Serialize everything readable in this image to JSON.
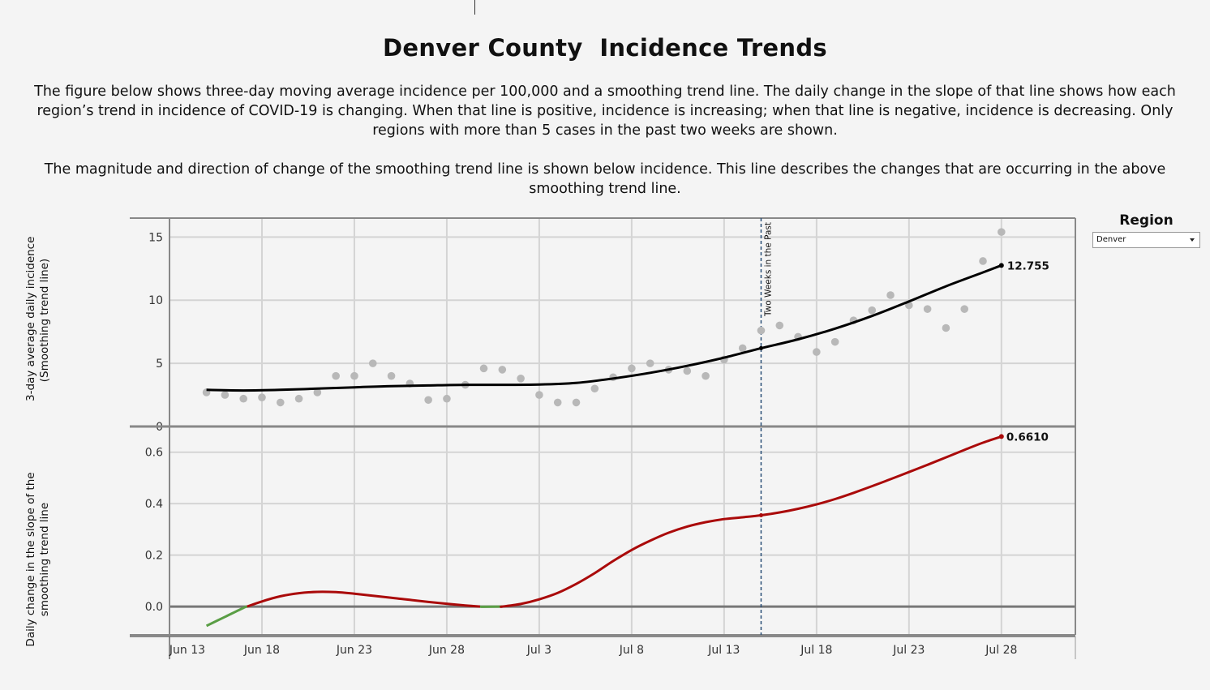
{
  "page": {
    "title": "Denver County  Incidence Trends",
    "description_1": "The figure below shows three-day moving average incidence per 100,000 and a smoothing trend line. The daily change in the slope of that line shows how each region’s trend in incidence of COVID-19 is changing. When that line is positive, incidence is increasing; when that line is negative, incidence is decreasing. Only regions with more than 5 cases in the past two weeks are shown.",
    "description_2": "The magnitude and direction of change of the smoothing trend line is shown below incidence. This line describes the changes that are occurring in the above smoothing trend line."
  },
  "region": {
    "label": "Region",
    "selected": "Denver"
  },
  "chart_data": [
    {
      "type": "scatter",
      "ylabel_line1": "3-day average daily incidence",
      "ylabel_line2": "(Smoothing trend line)",
      "ylim": [
        0,
        16.5
      ],
      "yticks": [
        0,
        5,
        10,
        15
      ],
      "ytick_labels": [
        "0",
        "5",
        "10",
        "15"
      ],
      "grid": true,
      "x_unit": "days from Jun 13",
      "points": [
        {
          "x": 2,
          "y": 2.7
        },
        {
          "x": 3,
          "y": 2.5
        },
        {
          "x": 4,
          "y": 2.2
        },
        {
          "x": 5,
          "y": 2.3
        },
        {
          "x": 6,
          "y": 1.9
        },
        {
          "x": 7,
          "y": 2.2
        },
        {
          "x": 8,
          "y": 2.7
        },
        {
          "x": 9,
          "y": 4.0
        },
        {
          "x": 10,
          "y": 4.0
        },
        {
          "x": 11,
          "y": 5.0
        },
        {
          "x": 12,
          "y": 4.0
        },
        {
          "x": 13,
          "y": 3.4
        },
        {
          "x": 14,
          "y": 2.1
        },
        {
          "x": 15,
          "y": 2.2
        },
        {
          "x": 16,
          "y": 3.3
        },
        {
          "x": 17,
          "y": 4.6
        },
        {
          "x": 18,
          "y": 4.5
        },
        {
          "x": 19,
          "y": 3.8
        },
        {
          "x": 20,
          "y": 2.5
        },
        {
          "x": 21,
          "y": 1.9
        },
        {
          "x": 22,
          "y": 1.9
        },
        {
          "x": 23,
          "y": 3.0
        },
        {
          "x": 24,
          "y": 3.9
        },
        {
          "x": 25,
          "y": 4.6
        },
        {
          "x": 26,
          "y": 5.0
        },
        {
          "x": 27,
          "y": 4.5
        },
        {
          "x": 28,
          "y": 4.4
        },
        {
          "x": 29,
          "y": 4.0
        },
        {
          "x": 30,
          "y": 5.3
        },
        {
          "x": 31,
          "y": 6.2
        },
        {
          "x": 32,
          "y": 7.6
        },
        {
          "x": 33,
          "y": 8.0
        },
        {
          "x": 34,
          "y": 7.1
        },
        {
          "x": 35,
          "y": 5.9
        },
        {
          "x": 36,
          "y": 6.7
        },
        {
          "x": 37,
          "y": 8.4
        },
        {
          "x": 38,
          "y": 9.2
        },
        {
          "x": 39,
          "y": 10.4
        },
        {
          "x": 40,
          "y": 9.6
        },
        {
          "x": 41,
          "y": 9.3
        },
        {
          "x": 42,
          "y": 7.8
        },
        {
          "x": 43,
          "y": 9.3
        },
        {
          "x": 44,
          "y": 13.1
        },
        {
          "x": 45,
          "y": 15.4
        }
      ],
      "trend_line": [
        {
          "x": 2,
          "y": 2.9
        },
        {
          "x": 4,
          "y": 2.85
        },
        {
          "x": 6,
          "y": 2.9
        },
        {
          "x": 8,
          "y": 3.0
        },
        {
          "x": 10,
          "y": 3.1
        },
        {
          "x": 12,
          "y": 3.2
        },
        {
          "x": 14,
          "y": 3.25
        },
        {
          "x": 16,
          "y": 3.3
        },
        {
          "x": 18,
          "y": 3.3
        },
        {
          "x": 20,
          "y": 3.32
        },
        {
          "x": 22,
          "y": 3.45
        },
        {
          "x": 24,
          "y": 3.8
        },
        {
          "x": 26,
          "y": 4.25
        },
        {
          "x": 28,
          "y": 4.8
        },
        {
          "x": 30,
          "y": 5.45
        },
        {
          "x": 32,
          "y": 6.2
        },
        {
          "x": 34,
          "y": 6.9
        },
        {
          "x": 36,
          "y": 7.75
        },
        {
          "x": 38,
          "y": 8.75
        },
        {
          "x": 40,
          "y": 9.9
        },
        {
          "x": 42,
          "y": 11.1
        },
        {
          "x": 44,
          "y": 12.2
        },
        {
          "x": 45,
          "y": 12.755
        }
      ],
      "end_label": "12.755",
      "annotation": {
        "x": 32,
        "text": "Two Weeks in the Past"
      }
    },
    {
      "type": "line",
      "ylabel_line1": "Daily change in the slope of the",
      "ylabel_line2": "smoothing trend line",
      "ylim": [
        -0.11,
        0.7
      ],
      "yticks": [
        0,
        0.2,
        0.4,
        0.6
      ],
      "ytick_labels": [
        "0.0",
        "0.2",
        "0.4",
        "0.6"
      ],
      "grid": true,
      "negative_color": "#5a9e45",
      "positive_color": "#aa0a0a",
      "series": [
        {
          "x": 2,
          "y": -0.075
        },
        {
          "x": 3,
          "y": -0.04
        },
        {
          "x": 4,
          "y": -0.005
        },
        {
          "x": 5,
          "y": 0.02
        },
        {
          "x": 6,
          "y": 0.04
        },
        {
          "x": 7,
          "y": 0.052
        },
        {
          "x": 8,
          "y": 0.057
        },
        {
          "x": 9,
          "y": 0.056
        },
        {
          "x": 10,
          "y": 0.05
        },
        {
          "x": 11,
          "y": 0.042
        },
        {
          "x": 12,
          "y": 0.034
        },
        {
          "x": 13,
          "y": 0.026
        },
        {
          "x": 14,
          "y": 0.018
        },
        {
          "x": 15,
          "y": 0.011
        },
        {
          "x": 16,
          "y": 0.004
        },
        {
          "x": 17,
          "y": -0.001
        },
        {
          "x": 18,
          "y": 0.0
        },
        {
          "x": 19,
          "y": 0.01
        },
        {
          "x": 20,
          "y": 0.028
        },
        {
          "x": 21,
          "y": 0.053
        },
        {
          "x": 22,
          "y": 0.088
        },
        {
          "x": 23,
          "y": 0.13
        },
        {
          "x": 24,
          "y": 0.177
        },
        {
          "x": 25,
          "y": 0.22
        },
        {
          "x": 26,
          "y": 0.256
        },
        {
          "x": 27,
          "y": 0.287
        },
        {
          "x": 28,
          "y": 0.311
        },
        {
          "x": 29,
          "y": 0.328
        },
        {
          "x": 30,
          "y": 0.34
        },
        {
          "x": 31,
          "y": 0.347
        },
        {
          "x": 32,
          "y": 0.355
        },
        {
          "x": 33,
          "y": 0.366
        },
        {
          "x": 34,
          "y": 0.38
        },
        {
          "x": 35,
          "y": 0.397
        },
        {
          "x": 36,
          "y": 0.418
        },
        {
          "x": 37,
          "y": 0.442
        },
        {
          "x": 38,
          "y": 0.468
        },
        {
          "x": 39,
          "y": 0.495
        },
        {
          "x": 40,
          "y": 0.523
        },
        {
          "x": 41,
          "y": 0.551
        },
        {
          "x": 42,
          "y": 0.58
        },
        {
          "x": 43,
          "y": 0.609
        },
        {
          "x": 44,
          "y": 0.637
        },
        {
          "x": 45,
          "y": 0.661
        }
      ],
      "end_label": "0.6610",
      "marker_x": 32
    }
  ],
  "x_axis": {
    "xlim": [
      0,
      49
    ],
    "ticks": [
      0,
      5,
      10,
      15,
      20,
      25,
      30,
      35,
      40,
      45
    ],
    "tick_labels": [
      "Jun 13",
      "Jun 18",
      "Jun 23",
      "Jun 28",
      "Jul 3",
      "Jul 8",
      "Jul 13",
      "Jul 18",
      "Jul 23",
      "Jul 28"
    ]
  }
}
